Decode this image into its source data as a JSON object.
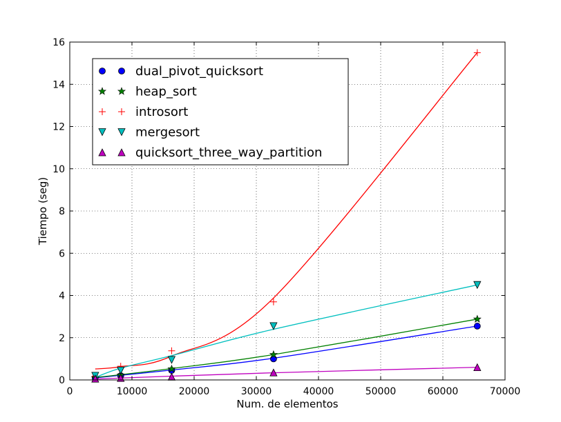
{
  "chart_data": {
    "type": "line",
    "xlabel": "Num. de elementos",
    "ylabel": "Tiempo (seg)",
    "xlim": [
      0,
      70000
    ],
    "ylim": [
      0,
      16
    ],
    "xticks": [
      0,
      10000,
      20000,
      30000,
      40000,
      50000,
      60000,
      70000
    ],
    "xtick_labels": [
      "0",
      "10000",
      "20000",
      "30000",
      "40000",
      "50000",
      "60000",
      "70000"
    ],
    "yticks": [
      0,
      2,
      4,
      6,
      8,
      10,
      12,
      14,
      16
    ],
    "ytick_labels": [
      "0",
      "2",
      "4",
      "6",
      "8",
      "10",
      "12",
      "14",
      "16"
    ],
    "grid": true,
    "legend_position": "upper-left",
    "x": [
      4096,
      8192,
      16384,
      32768,
      65536
    ],
    "series": [
      {
        "name": "dual_pivot_quicksort",
        "marker": "circle",
        "color": "#0000ff",
        "values": [
          0.09,
          0.2,
          0.45,
          1.0,
          2.55
        ],
        "fit_values": [
          0.1,
          0.22,
          0.47,
          1.03,
          2.55
        ]
      },
      {
        "name": "heap_sort",
        "marker": "star",
        "color": "#008000",
        "values": [
          0.1,
          0.23,
          0.52,
          1.2,
          2.88
        ],
        "fit_values": [
          0.12,
          0.25,
          0.54,
          1.2,
          2.88
        ]
      },
      {
        "name": "introsort",
        "marker": "plus",
        "color": "#ff0000",
        "values": [
          0.18,
          0.65,
          1.38,
          3.7,
          15.5
        ],
        "fit_values": [
          0.52,
          0.63,
          1.13,
          3.88,
          15.5
        ]
      },
      {
        "name": "mergesort",
        "marker": "triangle-down",
        "color": "#00bfbf",
        "values": [
          0.2,
          0.45,
          0.95,
          2.55,
          4.5
        ],
        "fit_values": [
          0.12,
          0.56,
          1.15,
          2.4,
          4.5
        ]
      },
      {
        "name": "quicksort_three_way_partition",
        "marker": "triangle-up",
        "color": "#bf00bf",
        "values": [
          0.06,
          0.09,
          0.15,
          0.35,
          0.6
        ],
        "fit_values": [
          0.04,
          0.09,
          0.18,
          0.34,
          0.6
        ]
      }
    ]
  }
}
